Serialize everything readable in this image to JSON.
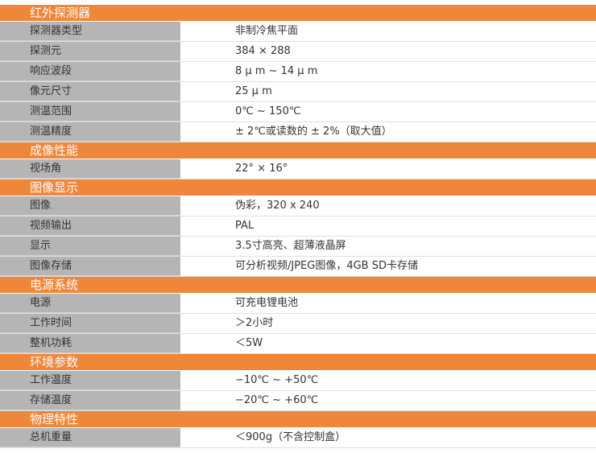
{
  "colors": {
    "section": "#ef873a",
    "label_bg": "#b5b5b5"
  },
  "sections": [
    {
      "title": "红外探测器",
      "rows": [
        [
          "探测器类型",
          "非制冷焦平面"
        ],
        [
          "探测元",
          "384 × 288"
        ],
        [
          "响应波段",
          "8 μ m ~ 14 μ m"
        ],
        [
          "像元尺寸",
          "25 μ m"
        ],
        [
          "测温范围",
          "0℃ ~ 150℃"
        ],
        [
          "测温精度",
          "± 2℃或读数的 ± 2%（取大值）"
        ]
      ]
    },
    {
      "title": "成像性能",
      "rows": [
        [
          "视场角",
          "22°  × 16°"
        ]
      ]
    },
    {
      "title": "图像显示",
      "rows": [
        [
          "图像",
          "伪彩，320 x 240"
        ],
        [
          "视频输出",
          "PAL"
        ],
        [
          "显示",
          "3.5寸高亮、超薄液晶屏"
        ],
        [
          "图像存储",
          "可分析视频/JPEG图像，4GB SD卡存储"
        ]
      ]
    },
    {
      "title": "电源系统",
      "rows": [
        [
          "电源",
          "可充电锂电池"
        ],
        [
          "工作时间",
          "＞2小时"
        ],
        [
          "整机功耗",
          "＜5W"
        ]
      ]
    },
    {
      "title": "环境参数",
      "rows": [
        [
          "工作温度",
          "−10℃ ~ +50℃"
        ],
        [
          "存储温度",
          "−20℃ ~ +60℃"
        ]
      ]
    },
    {
      "title": "物理特性",
      "rows": [
        [
          "总机重量",
          "＜900g（不含控制盒）"
        ]
      ]
    }
  ]
}
